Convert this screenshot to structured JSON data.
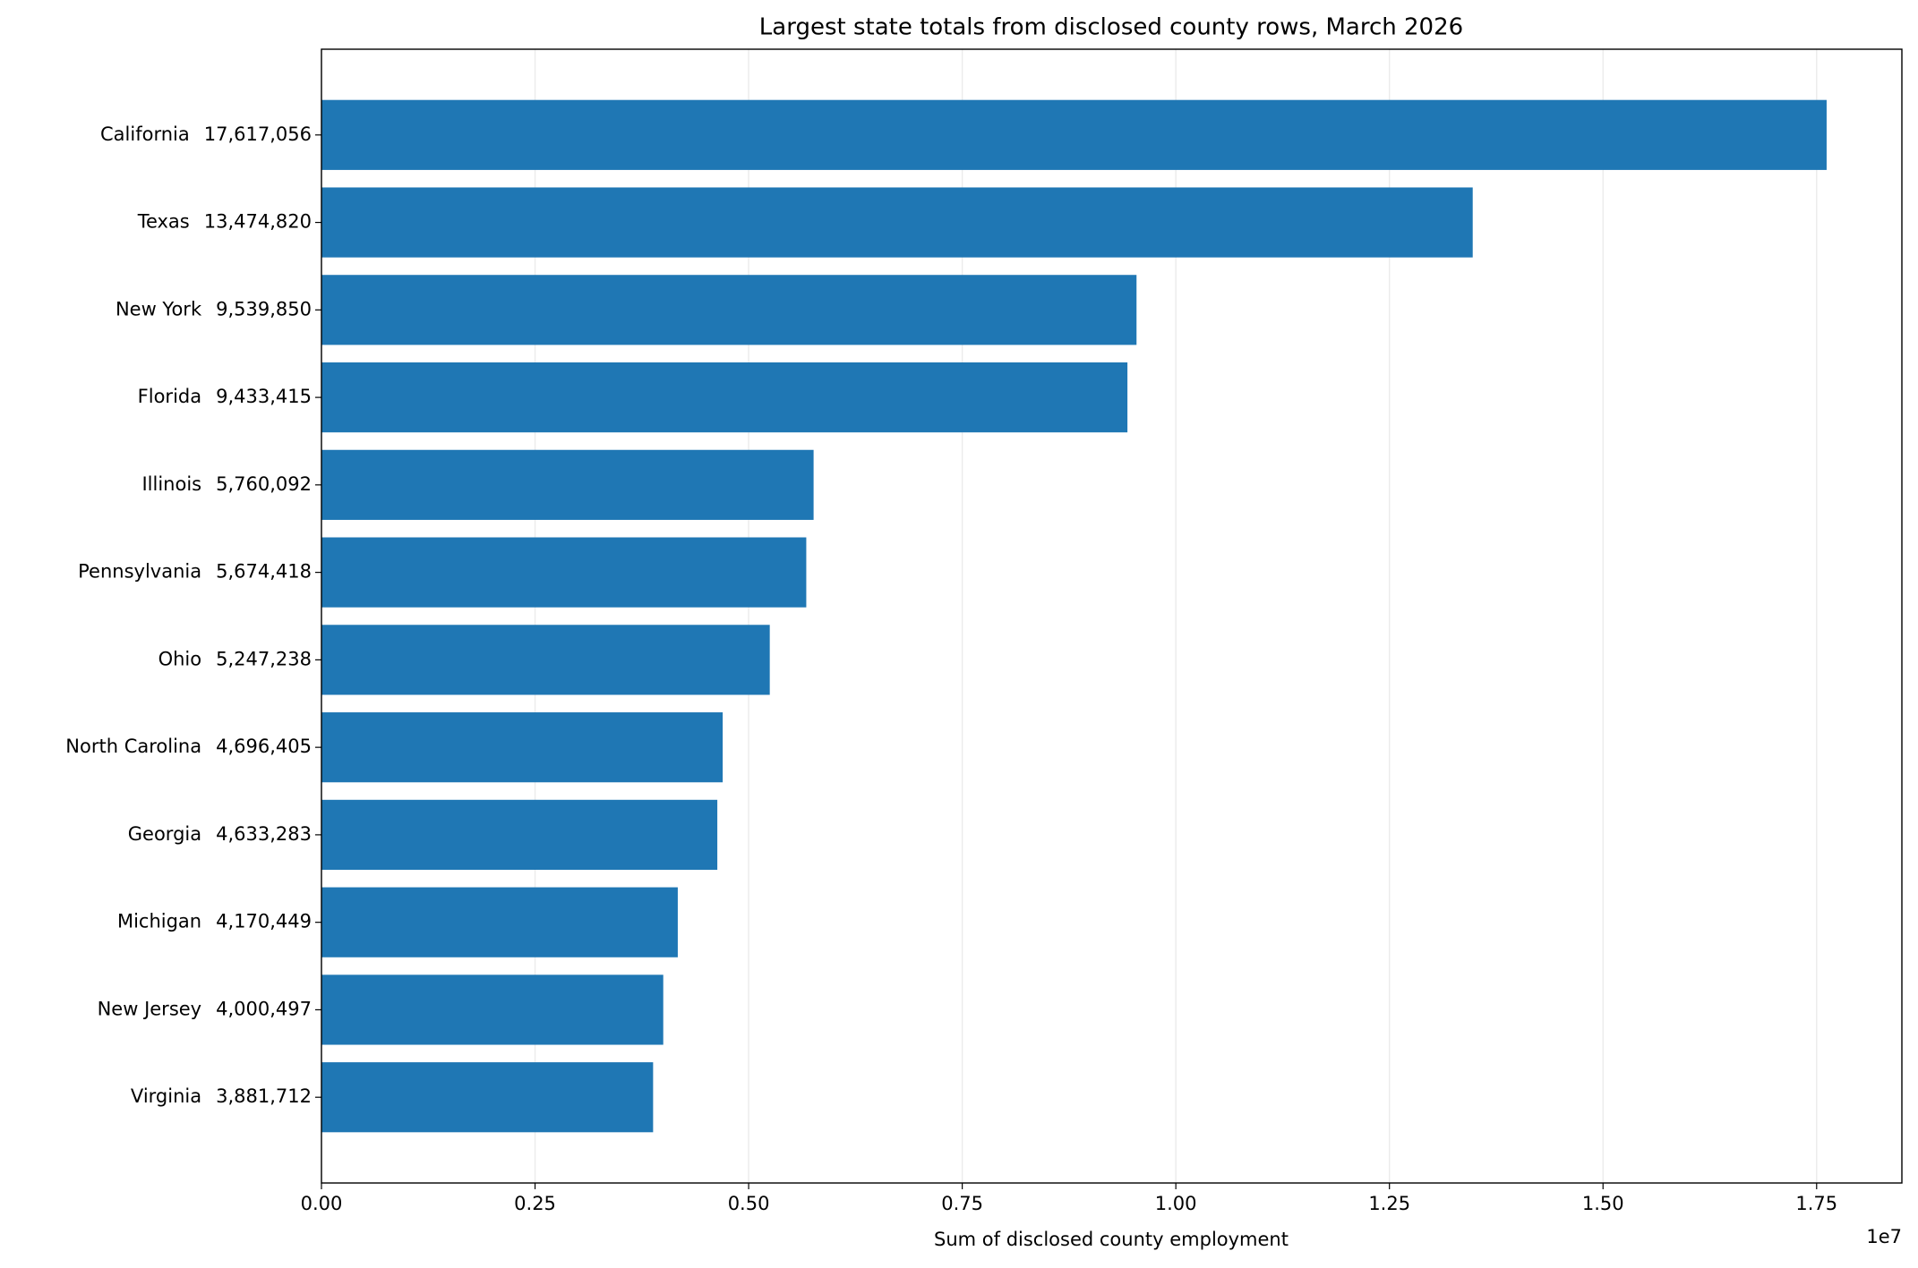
{
  "chart_data": {
    "type": "barh",
    "title": "Largest state totals from disclosed county rows, March 2026",
    "xlabel": "Sum of disclosed county employment",
    "x_offset_label": "1e7",
    "categories": [
      "California",
      "Texas",
      "New York",
      "Florida",
      "Illinois",
      "Pennsylvania",
      "Ohio",
      "North Carolina",
      "Georgia",
      "Michigan",
      "New Jersey",
      "Virginia"
    ],
    "values": [
      17617056,
      13474820,
      9539850,
      9433415,
      5760092,
      5674418,
      5247238,
      4696405,
      4633283,
      4170449,
      4000497,
      3881712
    ],
    "value_labels": [
      "17,617,056",
      "13,474,820",
      "9,539,850",
      "9,433,415",
      "5,760,092",
      "5,674,418",
      "5,247,238",
      "4,696,405",
      "4,633,283",
      "4,170,449",
      "4,000,497",
      "3,881,712"
    ],
    "color": "#1f77b4",
    "xlim": [
      0,
      18497909
    ],
    "xticks": [
      {
        "value": 0,
        "label": "0.00"
      },
      {
        "value": 2500000,
        "label": "0.25"
      },
      {
        "value": 5000000,
        "label": "0.50"
      },
      {
        "value": 7500000,
        "label": "0.75"
      },
      {
        "value": 10000000,
        "label": "1.00"
      },
      {
        "value": 12500000,
        "label": "1.25"
      },
      {
        "value": 15000000,
        "label": "1.50"
      },
      {
        "value": 17500000,
        "label": "1.75"
      }
    ],
    "grid": true
  }
}
